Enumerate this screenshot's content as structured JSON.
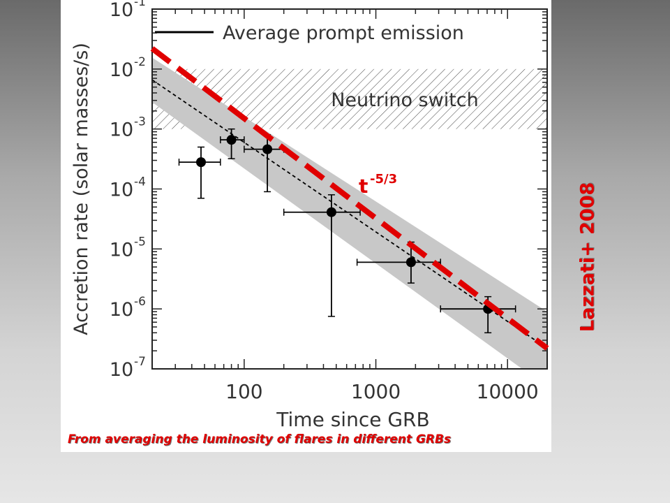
{
  "caption": "From averaging the luminosity of flares in different GRBs",
  "side_label": "Lazzati+ 2008",
  "colors": {
    "accent_red": "#e00000",
    "band_gray": "#c8c8c8"
  },
  "chart_data": {
    "type": "scatter",
    "title": "",
    "xlabel": "Time since GRB",
    "ylabel": "Accretion rate (solar masses/s)",
    "x_scale": "log",
    "y_scale": "log",
    "xlim": [
      20,
      20000
    ],
    "ylim": [
      1e-07,
      0.1
    ],
    "x_ticks": [
      100,
      1000,
      10000
    ],
    "x_tick_labels": [
      "100",
      "1000",
      "10000"
    ],
    "y_ticks": [
      1e-07,
      1e-06,
      1e-05,
      0.0001,
      0.001,
      0.01,
      0.1
    ],
    "y_tick_labels": [
      {
        "base": "10",
        "exp": "-7"
      },
      {
        "base": "10",
        "exp": "-6"
      },
      {
        "base": "10",
        "exp": "-5"
      },
      {
        "base": "10",
        "exp": "-4"
      },
      {
        "base": "10",
        "exp": "-3"
      },
      {
        "base": "10",
        "exp": "-2"
      },
      {
        "base": "10",
        "exp": "-1"
      }
    ],
    "legend": {
      "label": "Average prompt emission",
      "placement": "top"
    },
    "neutrino_switch": {
      "label": "Neutrino switch",
      "y_min": 0.001,
      "y_max": 0.01
    },
    "points": [
      {
        "x": 47,
        "y": 0.00028,
        "x_lo": 32,
        "x_hi": 66,
        "y_lo": 7e-05,
        "y_hi": 0.0005
      },
      {
        "x": 80,
        "y": 0.00066,
        "x_lo": 66,
        "x_hi": 100,
        "y_lo": 0.00032,
        "y_hi": 0.001
      },
      {
        "x": 150,
        "y": 0.00046,
        "x_lo": 100,
        "x_hi": 200,
        "y_lo": 9e-05,
        "y_hi": 0.0008
      },
      {
        "x": 460,
        "y": 4.1e-05,
        "x_lo": 200,
        "x_hi": 760,
        "y_lo": 7.5e-07,
        "y_hi": 8e-05
      },
      {
        "x": 1850,
        "y": 6e-06,
        "x_lo": 720,
        "x_hi": 3100,
        "y_lo": 2.7e-06,
        "y_hi": 1.3e-05
      },
      {
        "x": 7100,
        "y": 1e-06,
        "x_lo": 3100,
        "x_hi": 11500,
        "y_lo": 4e-07,
        "y_hi": 1.6e-06
      }
    ],
    "fit_line": {
      "x": [
        20,
        20000
      ],
      "y": [
        0.0066,
        2.2e-07
      ]
    },
    "band": {
      "x": [
        20,
        20000
      ],
      "y_low": [
        0.0028,
        5e-08
      ],
      "y_high": [
        0.0155,
        9e-07
      ]
    },
    "powerlaw_line": {
      "label": "t",
      "exponent": "-5/3",
      "x": [
        20,
        20000
      ],
      "y": [
        0.022,
        2.2e-07
      ]
    }
  }
}
